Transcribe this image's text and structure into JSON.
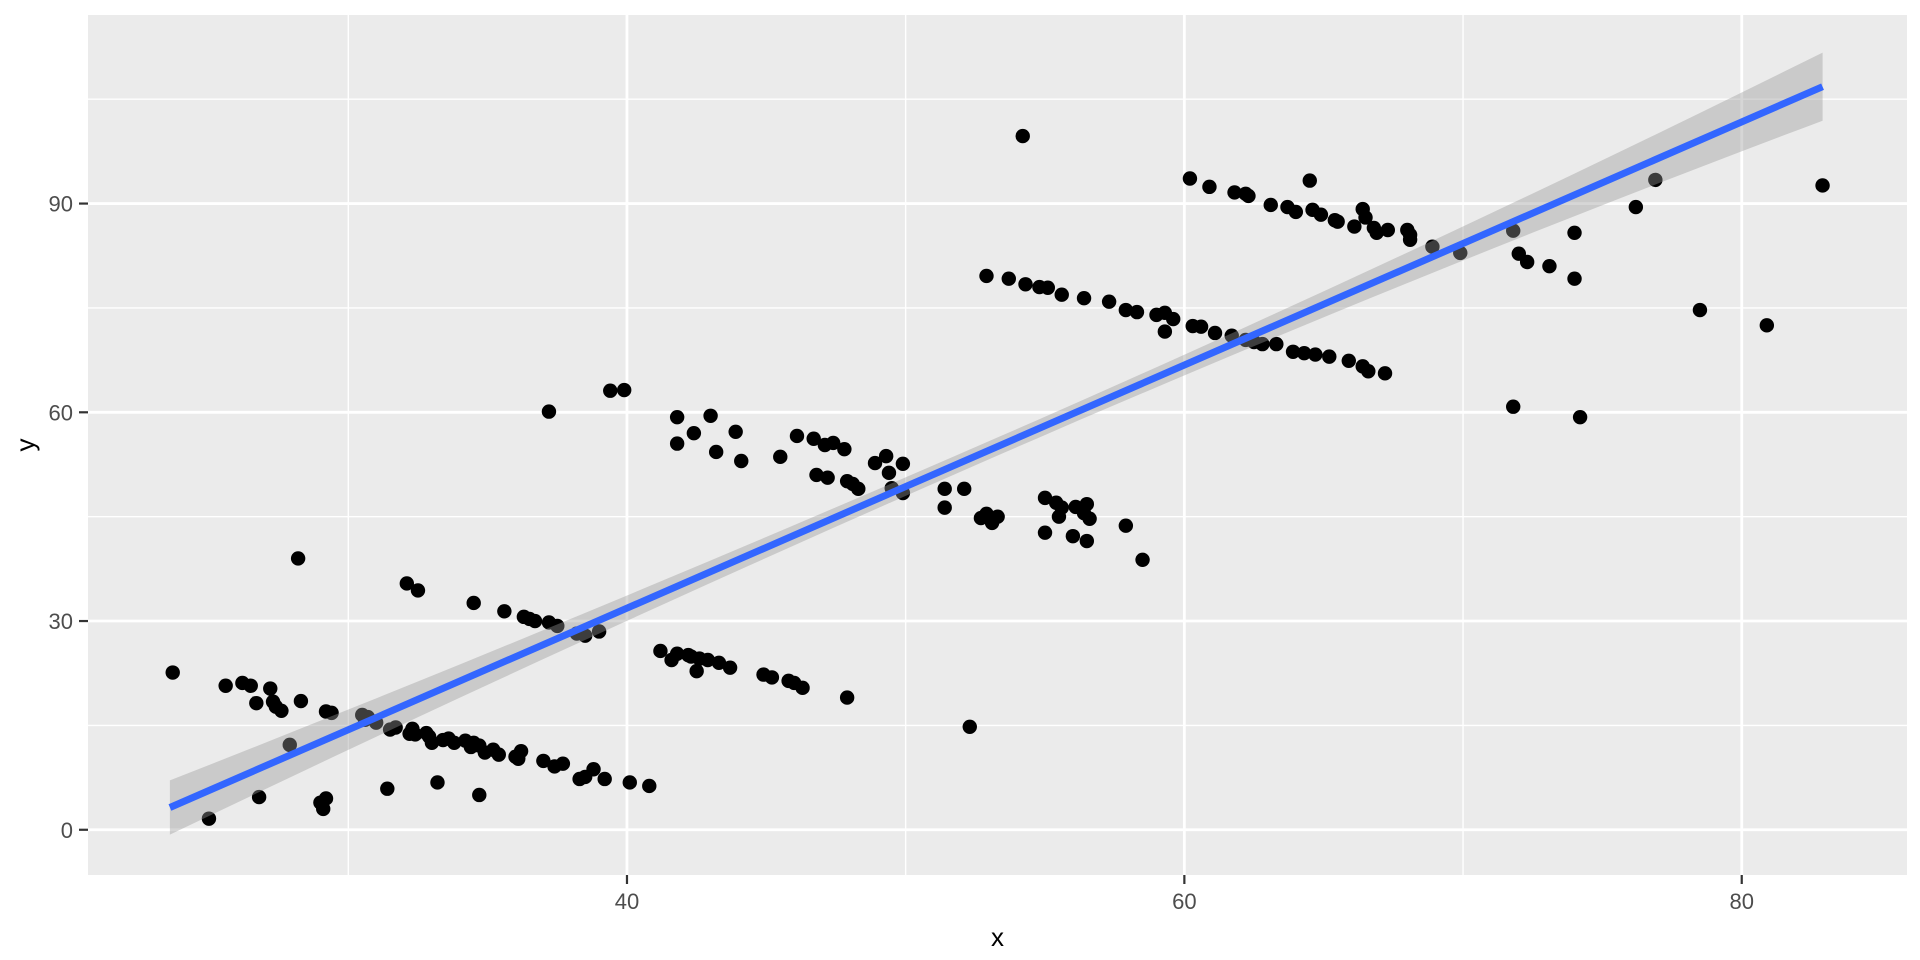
{
  "chart_data": {
    "type": "scatter",
    "title": "",
    "xlabel": "x",
    "ylabel": "y",
    "x_ticks": [
      40,
      60,
      80
    ],
    "x_minor_ticks": [
      30,
      50,
      70
    ],
    "y_ticks": [
      0,
      30,
      60,
      90
    ],
    "y_minor_ticks": [
      15,
      45,
      75,
      105
    ],
    "xlim": [
      20.66,
      85.93
    ],
    "ylim": [
      -6.5,
      117.1
    ],
    "grid": true,
    "legend": false,
    "points": [
      [
        23.7,
        22.6
      ],
      [
        25.6,
        20.7
      ],
      [
        26.2,
        21.1
      ],
      [
        26.5,
        20.7
      ],
      [
        26.7,
        18.2
      ],
      [
        27.2,
        20.3
      ],
      [
        27.3,
        18.4
      ],
      [
        27.4,
        17.7
      ],
      [
        27.6,
        17.1
      ],
      [
        28.3,
        18.5
      ],
      [
        29.2,
        17.0
      ],
      [
        29.4,
        16.8
      ],
      [
        30.5,
        16.5
      ],
      [
        30.7,
        16.2
      ],
      [
        30.6,
        15.8
      ],
      [
        31.0,
        15.4
      ],
      [
        31.5,
        14.4
      ],
      [
        31.7,
        14.7
      ],
      [
        32.2,
        13.8
      ],
      [
        32.3,
        14.5
      ],
      [
        32.4,
        13.7
      ],
      [
        32.8,
        13.9
      ],
      [
        32.9,
        13.4
      ],
      [
        33.0,
        12.5
      ],
      [
        33.4,
        12.9
      ],
      [
        33.6,
        13.1
      ],
      [
        33.8,
        12.5
      ],
      [
        34.2,
        12.8
      ],
      [
        34.4,
        11.9
      ],
      [
        34.5,
        12.5
      ],
      [
        34.7,
        12.1
      ],
      [
        34.9,
        11.1
      ],
      [
        35.2,
        11.5
      ],
      [
        35.4,
        10.8
      ],
      [
        36.0,
        10.5
      ],
      [
        36.1,
        10.2
      ],
      [
        36.2,
        11.3
      ],
      [
        37.0,
        9.9
      ],
      [
        37.4,
        9.1
      ],
      [
        37.7,
        9.5
      ],
      [
        38.3,
        7.3
      ],
      [
        38.5,
        7.6
      ],
      [
        38.8,
        8.7
      ],
      [
        39.2,
        7.3
      ],
      [
        40.1,
        6.8
      ],
      [
        40.8,
        6.3
      ],
      [
        25.0,
        1.6
      ],
      [
        26.8,
        4.7
      ],
      [
        29.0,
        3.9
      ],
      [
        29.1,
        3.0
      ],
      [
        29.2,
        4.5
      ],
      [
        31.4,
        5.9
      ],
      [
        33.2,
        6.8
      ],
      [
        34.7,
        5.0
      ],
      [
        28.2,
        39.0
      ],
      [
        27.9,
        12.2
      ],
      [
        32.1,
        35.4
      ],
      [
        32.5,
        34.4
      ],
      [
        34.5,
        32.6
      ],
      [
        35.6,
        31.4
      ],
      [
        36.3,
        30.6
      ],
      [
        36.5,
        30.3
      ],
      [
        36.7,
        30.0
      ],
      [
        37.2,
        29.8
      ],
      [
        37.5,
        29.3
      ],
      [
        38.2,
        28.2
      ],
      [
        38.5,
        27.9
      ],
      [
        39.0,
        28.5
      ],
      [
        41.2,
        25.7
      ],
      [
        41.6,
        24.4
      ],
      [
        41.8,
        25.3
      ],
      [
        42.2,
        25.1
      ],
      [
        42.3,
        24.9
      ],
      [
        42.5,
        22.8
      ],
      [
        42.6,
        24.6
      ],
      [
        42.9,
        24.4
      ],
      [
        43.3,
        24.0
      ],
      [
        43.7,
        23.3
      ],
      [
        44.9,
        22.3
      ],
      [
        45.2,
        21.9
      ],
      [
        45.8,
        21.4
      ],
      [
        46.0,
        21.1
      ],
      [
        46.3,
        20.4
      ],
      [
        47.9,
        19.0
      ],
      [
        52.3,
        14.8
      ],
      [
        37.2,
        60.1
      ],
      [
        39.4,
        63.1
      ],
      [
        39.9,
        63.2
      ],
      [
        41.8,
        59.3
      ],
      [
        41.8,
        55.5
      ],
      [
        42.4,
        57.0
      ],
      [
        43.0,
        59.5
      ],
      [
        43.2,
        54.3
      ],
      [
        43.9,
        57.2
      ],
      [
        44.1,
        53.0
      ],
      [
        45.5,
        53.6
      ],
      [
        46.1,
        56.6
      ],
      [
        46.7,
        56.2
      ],
      [
        47.1,
        55.3
      ],
      [
        47.4,
        55.6
      ],
      [
        47.8,
        54.7
      ],
      [
        46.8,
        51.0
      ],
      [
        47.2,
        50.6
      ],
      [
        47.9,
        50.1
      ],
      [
        48.1,
        49.7
      ],
      [
        48.3,
        49.0
      ],
      [
        48.9,
        52.7
      ],
      [
        49.3,
        53.7
      ],
      [
        49.4,
        51.3
      ],
      [
        49.9,
        52.6
      ],
      [
        49.5,
        49.1
      ],
      [
        49.9,
        48.4
      ],
      [
        51.4,
        49.0
      ],
      [
        52.1,
        49.0
      ],
      [
        51.4,
        46.3
      ],
      [
        52.7,
        44.8
      ],
      [
        52.9,
        45.4
      ],
      [
        53.1,
        44.1
      ],
      [
        53.3,
        45.0
      ],
      [
        55.0,
        47.7
      ],
      [
        55.4,
        47.0
      ],
      [
        55.6,
        46.3
      ],
      [
        55.5,
        45.0
      ],
      [
        56.1,
        46.4
      ],
      [
        56.4,
        45.5
      ],
      [
        56.5,
        46.8
      ],
      [
        56.6,
        44.7
      ],
      [
        55.0,
        42.7
      ],
      [
        56.0,
        42.2
      ],
      [
        56.5,
        41.5
      ],
      [
        57.9,
        43.7
      ],
      [
        58.5,
        38.8
      ],
      [
        54.2,
        99.7
      ],
      [
        52.9,
        79.6
      ],
      [
        53.7,
        79.2
      ],
      [
        54.3,
        78.4
      ],
      [
        54.8,
        78.0
      ],
      [
        55.1,
        77.9
      ],
      [
        55.6,
        76.9
      ],
      [
        56.4,
        76.4
      ],
      [
        57.3,
        75.9
      ],
      [
        57.9,
        74.7
      ],
      [
        58.3,
        74.4
      ],
      [
        59.0,
        74.0
      ],
      [
        59.3,
        74.3
      ],
      [
        59.3,
        71.6
      ],
      [
        59.6,
        73.4
      ],
      [
        60.3,
        72.4
      ],
      [
        60.6,
        72.3
      ],
      [
        61.1,
        71.4
      ],
      [
        61.7,
        71.0
      ],
      [
        62.2,
        70.4
      ],
      [
        62.5,
        70.1
      ],
      [
        62.8,
        69.8
      ],
      [
        63.3,
        69.8
      ],
      [
        63.9,
        68.7
      ],
      [
        64.3,
        68.5
      ],
      [
        64.7,
        68.3
      ],
      [
        65.2,
        68.0
      ],
      [
        65.9,
        67.4
      ],
      [
        66.4,
        66.6
      ],
      [
        66.6,
        65.9
      ],
      [
        67.2,
        65.6
      ],
      [
        60.2,
        93.6
      ],
      [
        60.9,
        92.4
      ],
      [
        61.8,
        91.6
      ],
      [
        62.2,
        91.4
      ],
      [
        62.3,
        91.1
      ],
      [
        63.1,
        89.8
      ],
      [
        63.7,
        89.5
      ],
      [
        64.0,
        88.8
      ],
      [
        64.5,
        93.3
      ],
      [
        64.6,
        89.1
      ],
      [
        64.9,
        88.4
      ],
      [
        65.4,
        87.6
      ],
      [
        65.5,
        87.4
      ],
      [
        66.1,
        86.7
      ],
      [
        66.4,
        89.2
      ],
      [
        66.5,
        88.0
      ],
      [
        66.8,
        86.5
      ],
      [
        66.9,
        85.8
      ],
      [
        67.3,
        86.2
      ],
      [
        68.0,
        86.2
      ],
      [
        68.1,
        85.5
      ],
      [
        68.1,
        84.8
      ],
      [
        68.9,
        83.8
      ],
      [
        69.9,
        82.9
      ],
      [
        71.8,
        86.1
      ],
      [
        72.0,
        82.8
      ],
      [
        72.3,
        81.6
      ],
      [
        73.1,
        81.0
      ],
      [
        74.0,
        85.8
      ],
      [
        74.0,
        79.2
      ],
      [
        76.2,
        89.5
      ],
      [
        76.9,
        93.4
      ],
      [
        78.5,
        74.7
      ],
      [
        80.9,
        72.5
      ],
      [
        82.9,
        92.6
      ],
      [
        71.8,
        60.8
      ],
      [
        74.2,
        59.3
      ]
    ],
    "smooth_line": {
      "x_start": 23.6,
      "y_start": 3.2,
      "x_end": 82.9,
      "y_end": 106.8,
      "color": "#3366FF",
      "width": 7
    },
    "confidence_band": {
      "x_start": 23.6,
      "x_end": 82.9,
      "half_width_mid": 1.3,
      "half_width_left": 3.9,
      "half_width_right": 4.9,
      "fill": "#999999",
      "opacity": 0.4
    }
  },
  "style": {
    "panel_bg": "#EBEBEB",
    "grid_color": "#FFFFFF",
    "point_color": "#000000",
    "point_radius": 7.2,
    "tick_label_color": "#4D4D4D",
    "axis_title_color": "#000000",
    "tick_mark_color": "#333333",
    "page_bg": "#FFFFFF"
  }
}
